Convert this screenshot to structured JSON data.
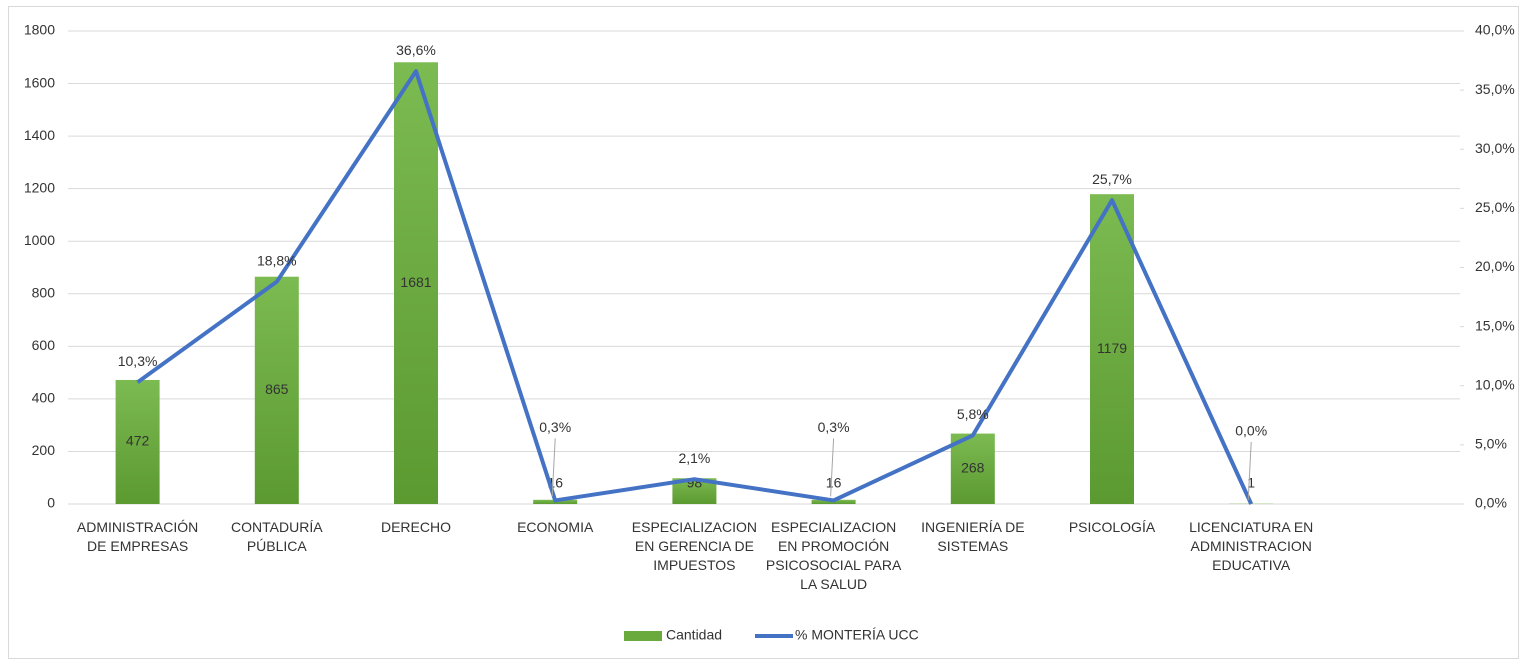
{
  "chart_data": {
    "type": "bar-line",
    "categories": [
      "ADMINISTRACIÓN DE EMPRESAS",
      "CONTADURÍA PÚBLICA",
      "DERECHO",
      "ECONOMIA",
      "ESPECIALIZACION EN GERENCIA DE IMPUESTOS",
      "ESPECIALIZACION EN PROMOCIÓN PSICOSOCIAL PARA LA SALUD",
      "INGENIERÍA DE SISTEMAS",
      "PSICOLOGÍA",
      "LICENCIATURA EN ADMINISTRACION EDUCATIVA",
      null
    ],
    "series": [
      {
        "name": "Cantidad",
        "type": "bar",
        "color": "#6aaa3c",
        "values": [
          472,
          865,
          1681,
          16,
          98,
          16,
          268,
          1179,
          1,
          null
        ]
      },
      {
        "name": "% MONTERÍA UCC",
        "type": "line",
        "axis": "y2",
        "color": "#4472c4",
        "values": [
          10.3,
          18.8,
          36.6,
          0.3,
          2.1,
          0.3,
          5.8,
          25.7,
          0.0,
          null
        ],
        "value_labels": [
          "10,3%",
          "18,8%",
          "36,6%",
          "0,3%",
          "2,1%",
          "0,3%",
          "5,8%",
          "25,7%",
          "0,0%",
          null
        ]
      }
    ],
    "ylim": [
      0,
      1800
    ],
    "yticks": [
      0,
      200,
      400,
      600,
      800,
      1000,
      1200,
      1400,
      1600,
      1800
    ],
    "y2lim": [
      0,
      40
    ],
    "y2ticks": [
      {
        "value": 0,
        "label": "0,0%"
      },
      {
        "value": 5,
        "label": "5,0%"
      },
      {
        "value": 10,
        "label": "10,0%"
      },
      {
        "value": 15,
        "label": "15,0%"
      },
      {
        "value": 20,
        "label": "20,0%"
      },
      {
        "value": 25,
        "label": "25,0%"
      },
      {
        "value": 30,
        "label": "30,0%"
      },
      {
        "value": 35,
        "label": "35,0%"
      },
      {
        "value": 40,
        "label": "40,0%"
      }
    ],
    "grid": true,
    "legend": "bottom"
  }
}
